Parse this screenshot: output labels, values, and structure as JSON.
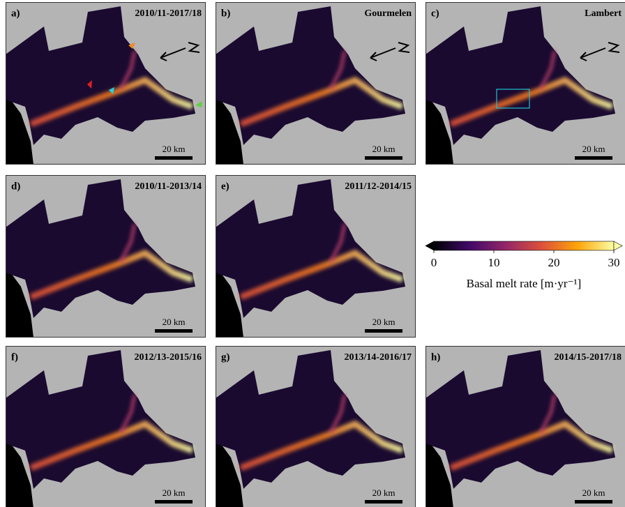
{
  "panels": [
    {
      "letter": "a)",
      "title": "2010/11-2017/18",
      "scale": "20 km"
    },
    {
      "letter": "b)",
      "title": "Gourmelen",
      "scale": "20 km"
    },
    {
      "letter": "c)",
      "title": "Lambert",
      "scale": "20 km"
    },
    {
      "letter": "d)",
      "title": "2010/11-2013/14",
      "scale": "20 km"
    },
    {
      "letter": "e)",
      "title": "2011/12-2014/15",
      "scale": "20 km"
    },
    {
      "letter": "f)",
      "title": "2012/13-2015/16",
      "scale": "20 km"
    },
    {
      "letter": "g)",
      "title": "2013/14-2016/17",
      "scale": "20 km"
    },
    {
      "letter": "h)",
      "title": "2014/15-2017/18",
      "scale": "20 km"
    }
  ],
  "colorbar": {
    "label": "Basal melt rate [m·yr⁻¹]",
    "lim": [
      0,
      30
    ],
    "ticks": [
      0,
      10,
      20,
      30
    ]
  }
}
